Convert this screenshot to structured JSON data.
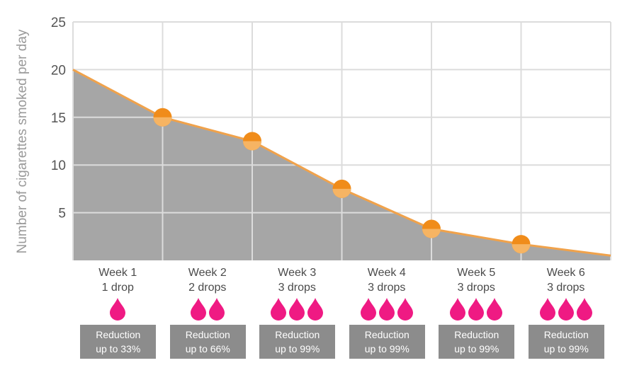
{
  "chart_data": {
    "type": "area",
    "ylabel": "Number of cigarettes smoked per day",
    "ylim": [
      0,
      25
    ],
    "yticks": [
      5,
      10,
      15,
      20,
      25
    ],
    "grid": true,
    "x": [
      0,
      1,
      2,
      3,
      4,
      5,
      6
    ],
    "values": [
      20,
      15,
      12.5,
      7.5,
      3.3,
      1.7,
      0.5
    ],
    "marker_x": [
      1,
      2,
      3,
      4,
      5
    ],
    "area_color": "#a6a6a6",
    "line_color": "#f0a24b",
    "marker_color": "#f08c1a",
    "weeks": [
      {
        "week": "Week 1",
        "drops": "1 drop",
        "drop_count": 1,
        "reduction": "Reduction",
        "reduction_amount": "up to 33%"
      },
      {
        "week": "Week 2",
        "drops": "2 drops",
        "drop_count": 2,
        "reduction": "Reduction",
        "reduction_amount": "up to 66%"
      },
      {
        "week": "Week 3",
        "drops": "3 drops",
        "drop_count": 3,
        "reduction": "Reduction",
        "reduction_amount": "up to 99%"
      },
      {
        "week": "Week 4",
        "drops": "3 drops",
        "drop_count": 3,
        "reduction": "Reduction",
        "reduction_amount": "up to 99%"
      },
      {
        "week": "Week 5",
        "drops": "3 drops",
        "drop_count": 3,
        "reduction": "Reduction",
        "reduction_amount": "up to 99%"
      },
      {
        "week": "Week 6",
        "drops": "3 drops",
        "drop_count": 3,
        "reduction": "Reduction",
        "reduction_amount": "up to 99%"
      }
    ],
    "drop_color": "#ef1a83",
    "badge_color": "#8c8c8c"
  }
}
